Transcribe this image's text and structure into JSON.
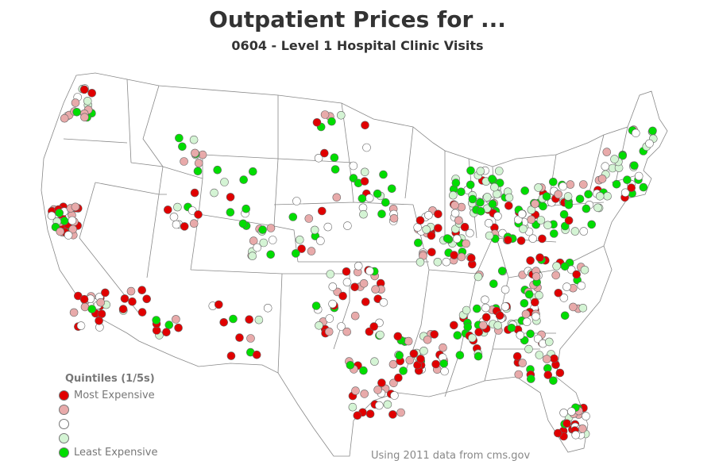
{
  "title": "Outpatient Prices for ...",
  "subtitle": "0604 - Level 1 Hospital Clinic Visits",
  "source": "Using 2011 data from cms.gov",
  "legend": {
    "title": "Quintiles (1/5s)",
    "items": [
      {
        "label": "Most Expensive",
        "color": "#e00000"
      },
      {
        "label": "",
        "color": "#e8aaaa"
      },
      {
        "label": "",
        "color": "#ffffff"
      },
      {
        "label": "",
        "color": "#d4f4d4"
      },
      {
        "label": "Least Expensive",
        "color": "#00dd00"
      }
    ]
  }
}
